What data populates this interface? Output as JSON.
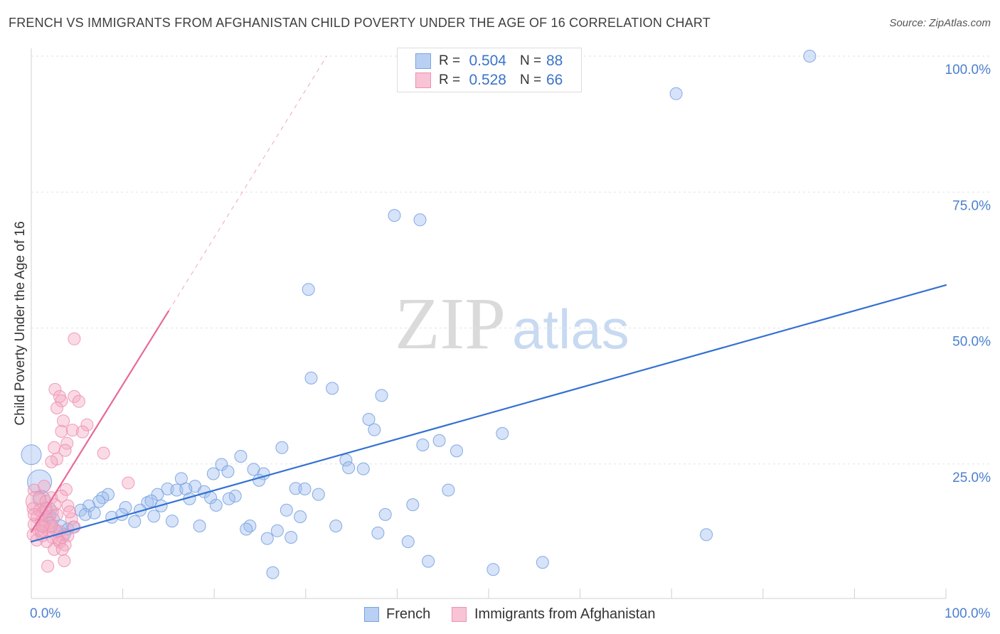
{
  "source": "Source: ZipAtlas.com",
  "watermark": {
    "zip": "ZIP",
    "atlas": "atlas"
  },
  "stats_legend": [
    {
      "r_label": "R =",
      "r_value": "0.504",
      "n_label": "N =",
      "n_value": "88"
    },
    {
      "r_label": "R =",
      "r_value": "0.528",
      "n_label": "N =",
      "n_value": "66"
    }
  ],
  "colors": {
    "value_text": "#3b73c9",
    "tick_text": "#4b7fcf",
    "title_text": "#3e3e3e"
  },
  "chart_data": {
    "type": "scatter",
    "title": "FRENCH VS IMMIGRANTS FROM AFGHANISTAN CHILD POVERTY UNDER THE AGE OF 16 CORRELATION CHART",
    "xlabel": "",
    "ylabel": "Child Poverty Under the Age of 16",
    "xlim": [
      0,
      100
    ],
    "ylim": [
      0,
      100
    ],
    "x_ticks": [
      0,
      10,
      20,
      30,
      40,
      50,
      60,
      70,
      80,
      90,
      100
    ],
    "x_tick_labels": [
      {
        "value": 0,
        "label": "0.0%"
      },
      {
        "value": 100,
        "label": "100.0%"
      }
    ],
    "y_ticks": [
      25,
      50,
      75,
      100
    ],
    "y_tick_labels": [
      "25.0%",
      "50.0%",
      "75.0%",
      "100.0%"
    ],
    "grid": true,
    "series": [
      {
        "name": "French",
        "color": "#9dbdee",
        "stroke_color": "#79a2e0",
        "line_color": "#3371d3",
        "swatch_color": "#b9d0f4",
        "trend": {
          "x": [
            0,
            100
          ],
          "y": [
            10.7,
            57.9
          ]
        },
        "points": [
          [
            85.1,
            100.0
          ],
          [
            70.5,
            93.1
          ],
          [
            39.7,
            70.7
          ],
          [
            42.5,
            69.9
          ],
          [
            30.3,
            57.1
          ],
          [
            30.6,
            40.8
          ],
          [
            32.9,
            38.9
          ],
          [
            38.3,
            37.6
          ],
          [
            36.9,
            33.2
          ],
          [
            37.5,
            31.3
          ],
          [
            51.5,
            30.6
          ],
          [
            44.6,
            29.3
          ],
          [
            42.8,
            28.5
          ],
          [
            46.5,
            27.4
          ],
          [
            27.4,
            28.0
          ],
          [
            22.9,
            26.4
          ],
          [
            34.4,
            25.7
          ],
          [
            34.7,
            24.3
          ],
          [
            36.3,
            24.1
          ],
          [
            20.8,
            24.9
          ],
          [
            21.5,
            23.6
          ],
          [
            19.9,
            23.2
          ],
          [
            24.3,
            24.0
          ],
          [
            25.4,
            23.2
          ],
          [
            24.9,
            22.0
          ],
          [
            16.4,
            22.3
          ],
          [
            17.9,
            20.9
          ],
          [
            14.9,
            20.4
          ],
          [
            15.9,
            20.2
          ],
          [
            16.9,
            20.4
          ],
          [
            18.9,
            19.9
          ],
          [
            13.8,
            19.4
          ],
          [
            28.9,
            20.5
          ],
          [
            29.9,
            20.4
          ],
          [
            31.4,
            19.4
          ],
          [
            45.6,
            20.2
          ],
          [
            22.3,
            19.1
          ],
          [
            21.6,
            18.6
          ],
          [
            17.3,
            18.6
          ],
          [
            19.6,
            18.8
          ],
          [
            20.2,
            17.4
          ],
          [
            12.7,
            17.9
          ],
          [
            13.1,
            18.2
          ],
          [
            14.2,
            17.3
          ],
          [
            27.9,
            16.5
          ],
          [
            29.4,
            15.3
          ],
          [
            41.7,
            17.5
          ],
          [
            38.7,
            15.7
          ],
          [
            13.4,
            15.4
          ],
          [
            11.9,
            16.5
          ],
          [
            10.3,
            17.0
          ],
          [
            8.4,
            19.4
          ],
          [
            7.8,
            18.8
          ],
          [
            7.4,
            18.1
          ],
          [
            6.3,
            17.3
          ],
          [
            5.4,
            16.5
          ],
          [
            5.9,
            15.7
          ],
          [
            6.9,
            16.0
          ],
          [
            8.8,
            15.2
          ],
          [
            9.9,
            15.7
          ],
          [
            11.3,
            14.4
          ],
          [
            15.4,
            14.5
          ],
          [
            18.4,
            13.6
          ],
          [
            23.9,
            13.6
          ],
          [
            23.5,
            13.0
          ],
          [
            26.9,
            12.7
          ],
          [
            33.3,
            13.6
          ],
          [
            37.9,
            12.3
          ],
          [
            25.8,
            11.3
          ],
          [
            28.4,
            11.5
          ],
          [
            41.2,
            10.7
          ],
          [
            73.8,
            12.0
          ],
          [
            43.4,
            7.1
          ],
          [
            50.5,
            5.6
          ],
          [
            55.9,
            6.9
          ],
          [
            26.4,
            5.0
          ],
          [
            0.0,
            26.7
          ],
          [
            0.9,
            21.7
          ],
          [
            1.1,
            18.6
          ],
          [
            1.9,
            16.5
          ],
          [
            2.4,
            14.9
          ],
          [
            3.2,
            13.6
          ],
          [
            4.0,
            13.0
          ],
          [
            4.6,
            13.4
          ],
          [
            3.6,
            12.0
          ],
          [
            2.8,
            12.6
          ],
          [
            1.4,
            13.9
          ],
          [
            2.0,
            15.4
          ]
        ]
      },
      {
        "name": "Immigrants from Afghanistan",
        "color": "#f4a9c2",
        "stroke_color": "#ee91b1",
        "line_color": "#e8699a",
        "swatch_color": "#f8c3d5",
        "trend": {
          "x": [
            0,
            15
          ],
          "y": [
            12.5,
            53.1
          ]
        },
        "trend_extension": {
          "x": [
            15,
            32.3
          ],
          "y": [
            53.1,
            100
          ]
        },
        "points": [
          [
            4.7,
            48.0
          ],
          [
            2.6,
            38.7
          ],
          [
            3.1,
            37.4
          ],
          [
            4.7,
            37.4
          ],
          [
            5.2,
            36.5
          ],
          [
            3.3,
            36.6
          ],
          [
            2.8,
            35.3
          ],
          [
            3.5,
            32.9
          ],
          [
            6.1,
            32.2
          ],
          [
            3.3,
            31.0
          ],
          [
            4.5,
            31.2
          ],
          [
            5.6,
            30.9
          ],
          [
            3.9,
            28.8
          ],
          [
            2.5,
            28.0
          ],
          [
            3.7,
            27.5
          ],
          [
            7.9,
            27.0
          ],
          [
            2.8,
            25.9
          ],
          [
            2.2,
            25.4
          ],
          [
            10.6,
            21.5
          ],
          [
            1.4,
            20.9
          ],
          [
            3.8,
            20.3
          ],
          [
            0.3,
            20.2
          ],
          [
            0.9,
            18.8
          ],
          [
            0.5,
            18.1
          ],
          [
            4.0,
            17.3
          ],
          [
            0.2,
            16.8
          ],
          [
            2.3,
            16.2
          ],
          [
            1.2,
            16.0
          ],
          [
            0.6,
            15.2
          ],
          [
            1.7,
            15.2
          ],
          [
            2.8,
            15.7
          ],
          [
            1.1,
            14.4
          ],
          [
            2.0,
            14.1
          ],
          [
            0.3,
            13.9
          ],
          [
            1.4,
            13.4
          ],
          [
            2.5,
            13.1
          ],
          [
            0.8,
            12.8
          ],
          [
            1.9,
            12.6
          ],
          [
            3.1,
            12.6
          ],
          [
            0.2,
            12.0
          ],
          [
            1.2,
            11.8
          ],
          [
            2.3,
            11.5
          ],
          [
            3.4,
            11.5
          ],
          [
            0.6,
            11.0
          ],
          [
            1.7,
            10.7
          ],
          [
            3.0,
            11.0
          ],
          [
            4.0,
            11.8
          ],
          [
            3.1,
            10.6
          ],
          [
            3.7,
            10.1
          ],
          [
            2.5,
            9.3
          ],
          [
            3.4,
            9.3
          ],
          [
            3.6,
            7.2
          ],
          [
            1.8,
            6.2
          ],
          [
            0.9,
            16.5
          ],
          [
            1.6,
            18.1
          ],
          [
            2.2,
            18.8
          ],
          [
            3.3,
            19.1
          ],
          [
            2.6,
            17.5
          ],
          [
            4.4,
            14.9
          ],
          [
            4.7,
            13.4
          ],
          [
            4.2,
            16.2
          ],
          [
            1.6,
            16.8
          ],
          [
            0.3,
            15.7
          ],
          [
            1.1,
            12.6
          ],
          [
            2.2,
            13.6
          ],
          [
            1.2,
            13.6
          ]
        ]
      }
    ]
  }
}
